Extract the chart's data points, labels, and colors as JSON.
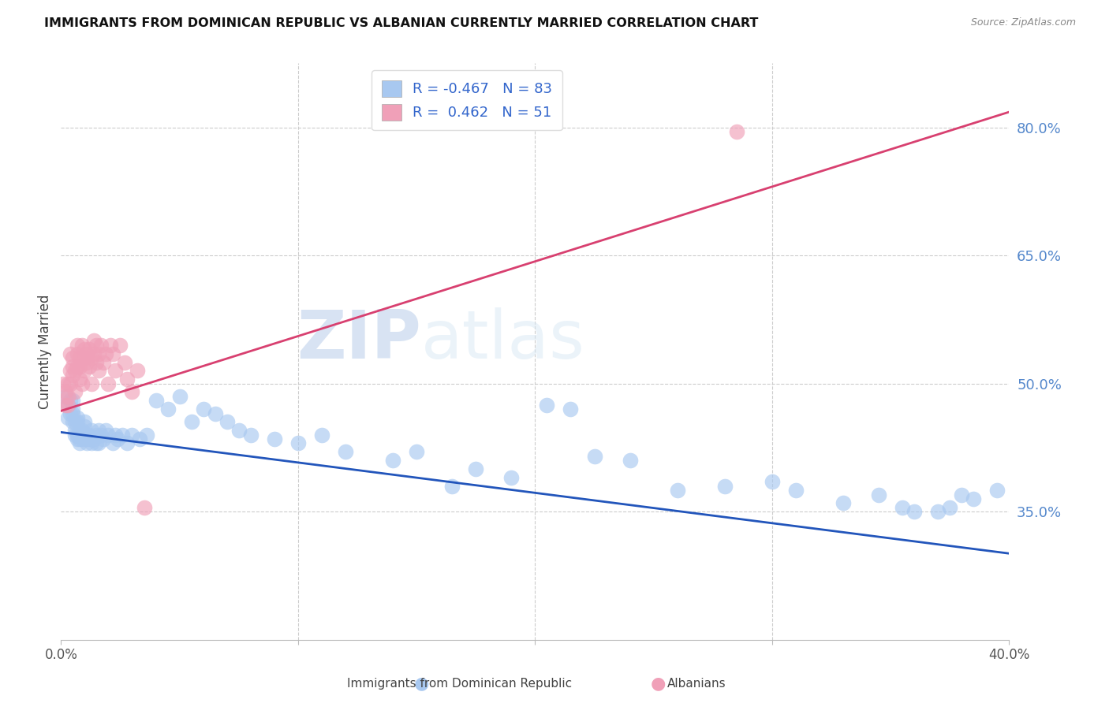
{
  "title": "IMMIGRANTS FROM DOMINICAN REPUBLIC VS ALBANIAN CURRENTLY MARRIED CORRELATION CHART",
  "source": "Source: ZipAtlas.com",
  "ylabel": "Currently Married",
  "yticks": [
    0.35,
    0.5,
    0.65,
    0.8
  ],
  "ytick_labels": [
    "35.0%",
    "50.0%",
    "65.0%",
    "80.0%"
  ],
  "xmin": 0.0,
  "xmax": 0.4,
  "ymin": 0.2,
  "ymax": 0.875,
  "blue_R": -0.467,
  "blue_N": 83,
  "pink_R": 0.462,
  "pink_N": 51,
  "blue_color": "#a8c8f0",
  "pink_color": "#f0a0b8",
  "blue_line_color": "#2255bb",
  "pink_line_color": "#d84070",
  "legend_label_blue": "Immigrants from Dominican Republic",
  "legend_label_pink": "Albanians",
  "blue_scatter_x": [
    0.002,
    0.003,
    0.003,
    0.004,
    0.004,
    0.005,
    0.005,
    0.005,
    0.005,
    0.006,
    0.006,
    0.006,
    0.007,
    0.007,
    0.007,
    0.007,
    0.008,
    0.008,
    0.008,
    0.009,
    0.009,
    0.01,
    0.01,
    0.01,
    0.011,
    0.011,
    0.011,
    0.012,
    0.012,
    0.013,
    0.013,
    0.014,
    0.015,
    0.015,
    0.016,
    0.016,
    0.017,
    0.018,
    0.019,
    0.02,
    0.022,
    0.023,
    0.024,
    0.026,
    0.028,
    0.03,
    0.033,
    0.036,
    0.04,
    0.045,
    0.05,
    0.055,
    0.06,
    0.065,
    0.07,
    0.075,
    0.08,
    0.09,
    0.1,
    0.11,
    0.12,
    0.14,
    0.15,
    0.165,
    0.175,
    0.19,
    0.205,
    0.215,
    0.225,
    0.24,
    0.26,
    0.28,
    0.3,
    0.31,
    0.33,
    0.345,
    0.355,
    0.36,
    0.37,
    0.375,
    0.38,
    0.385,
    0.395
  ],
  "blue_scatter_y": [
    0.485,
    0.46,
    0.475,
    0.48,
    0.465,
    0.48,
    0.455,
    0.465,
    0.47,
    0.445,
    0.455,
    0.44,
    0.44,
    0.455,
    0.46,
    0.435,
    0.435,
    0.445,
    0.43,
    0.445,
    0.435,
    0.45,
    0.44,
    0.455,
    0.435,
    0.44,
    0.43,
    0.435,
    0.44,
    0.43,
    0.445,
    0.435,
    0.44,
    0.43,
    0.445,
    0.43,
    0.44,
    0.435,
    0.445,
    0.44,
    0.43,
    0.44,
    0.435,
    0.44,
    0.43,
    0.44,
    0.435,
    0.44,
    0.48,
    0.47,
    0.485,
    0.455,
    0.47,
    0.465,
    0.455,
    0.445,
    0.44,
    0.435,
    0.43,
    0.44,
    0.42,
    0.41,
    0.42,
    0.38,
    0.4,
    0.39,
    0.475,
    0.47,
    0.415,
    0.41,
    0.375,
    0.38,
    0.385,
    0.375,
    0.36,
    0.37,
    0.355,
    0.35,
    0.35,
    0.355,
    0.37,
    0.365,
    0.375
  ],
  "pink_scatter_x": [
    0.001,
    0.002,
    0.002,
    0.003,
    0.003,
    0.003,
    0.004,
    0.004,
    0.004,
    0.005,
    0.005,
    0.005,
    0.006,
    0.006,
    0.007,
    0.007,
    0.007,
    0.008,
    0.008,
    0.008,
    0.009,
    0.009,
    0.01,
    0.01,
    0.01,
    0.011,
    0.011,
    0.012,
    0.012,
    0.013,
    0.013,
    0.014,
    0.014,
    0.015,
    0.015,
    0.016,
    0.016,
    0.017,
    0.018,
    0.019,
    0.02,
    0.021,
    0.022,
    0.023,
    0.025,
    0.027,
    0.028,
    0.03,
    0.032,
    0.035,
    0.285
  ],
  "pink_scatter_y": [
    0.5,
    0.475,
    0.49,
    0.475,
    0.485,
    0.5,
    0.5,
    0.515,
    0.535,
    0.51,
    0.52,
    0.53,
    0.49,
    0.515,
    0.52,
    0.535,
    0.545,
    0.505,
    0.53,
    0.52,
    0.545,
    0.5,
    0.515,
    0.53,
    0.54,
    0.525,
    0.535,
    0.54,
    0.52,
    0.53,
    0.5,
    0.55,
    0.535,
    0.525,
    0.545,
    0.535,
    0.515,
    0.545,
    0.525,
    0.535,
    0.5,
    0.545,
    0.535,
    0.515,
    0.545,
    0.525,
    0.505,
    0.49,
    0.515,
    0.355,
    0.795
  ],
  "watermark_zip": "ZIP",
  "watermark_atlas": "atlas",
  "background_color": "#ffffff",
  "grid_color": "#cccccc"
}
